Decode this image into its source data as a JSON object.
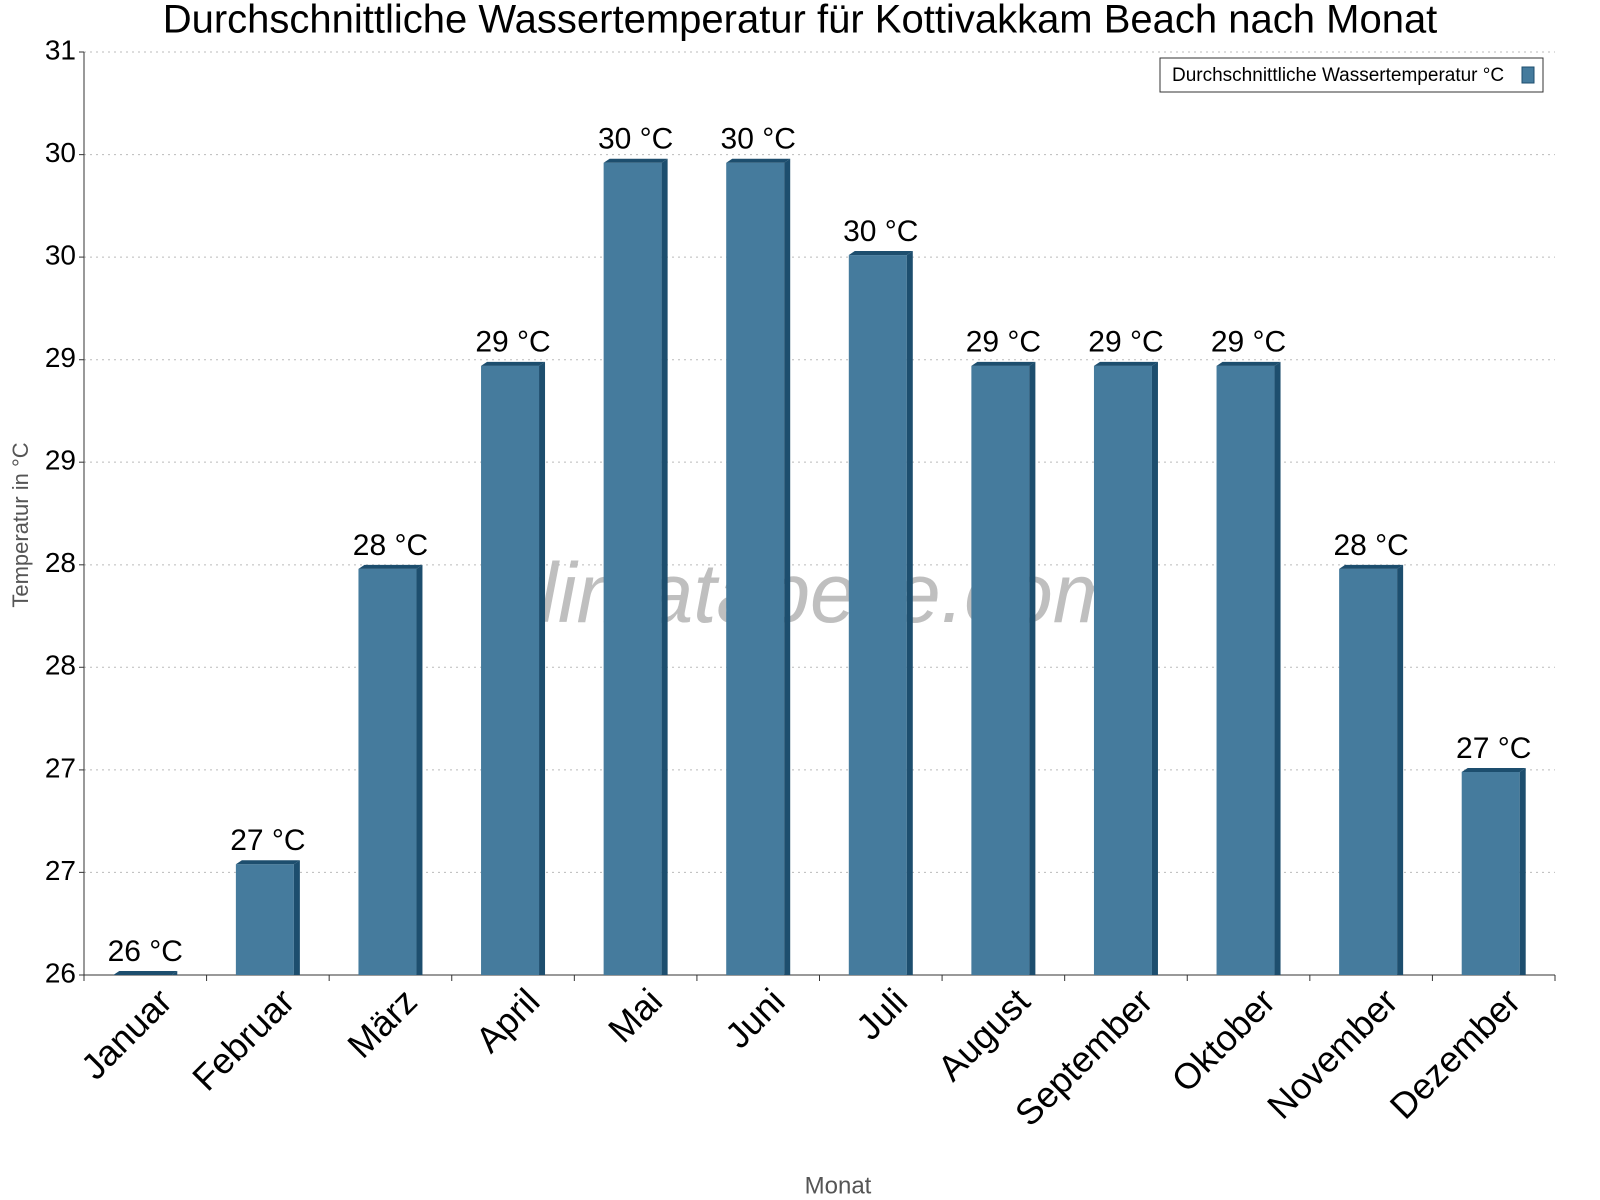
{
  "chart_data": {
    "type": "bar",
    "title": "Durchschnittliche Wassertemperatur für Kottivakkam Beach nach Monat",
    "x_label": "Monat",
    "y_label": "Temperatur in °C",
    "watermark": "klimatabelle.com",
    "categories": [
      "Januar",
      "Februar",
      "März",
      "April",
      "Mai",
      "Juni",
      "Juli",
      "August",
      "September",
      "Oktober",
      "November",
      "Dezember"
    ],
    "series": [
      {
        "name": "Durchschnittliche Wassertemperatur °C",
        "color": "#457b9d",
        "values": [
          26.0,
          26.6,
          28.2,
          29.3,
          30.4,
          30.4,
          29.9,
          29.3,
          29.3,
          29.3,
          28.2,
          27.1
        ],
        "value_labels": [
          "26 °C",
          "27 °C",
          "28 °C",
          "29 °C",
          "30 °C",
          "30 °C",
          "30 °C",
          "29 °C",
          "29 °C",
          "29 °C",
          "28 °C",
          "27 °C"
        ]
      }
    ],
    "ylim": [
      26,
      31
    ],
    "yticks": [
      26,
      {
        "value": 26.556,
        "label": "27"
      },
      {
        "value": 27.111,
        "label": "27"
      },
      {
        "value": 27.667,
        "label": "28"
      },
      {
        "value": 28.222,
        "label": "28"
      },
      {
        "value": 28.778,
        "label": "29"
      },
      {
        "value": 29.333,
        "label": "29"
      },
      {
        "value": 29.889,
        "label": "30"
      },
      {
        "value": 30.444,
        "label": "30"
      },
      31
    ],
    "grid": true,
    "legend_position": "top-right"
  }
}
